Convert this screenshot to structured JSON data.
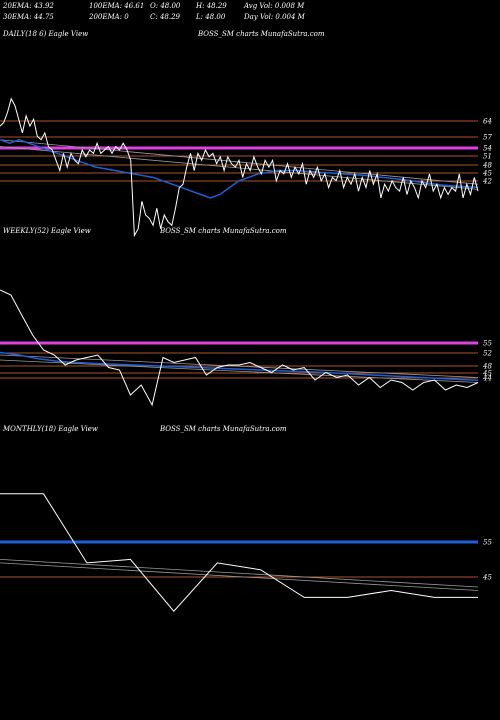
{
  "header": {
    "stats": [
      {
        "label": "20EMA: 43.92"
      },
      {
        "label": "100EMA: 46.61"
      },
      {
        "label": "O: 48.00"
      },
      {
        "label": "H: 48.29"
      },
      {
        "label": "Avg Vol: 0.008  M"
      },
      {
        "label": "30EMA: 44.75"
      },
      {
        "label": "200EMA: 0"
      },
      {
        "label": "C: 48.29"
      },
      {
        "label": "L: 48.00"
      },
      {
        "label": "Day Vol: 0.004  M"
      }
    ]
  },
  "colors": {
    "background": "#000000",
    "price_line": "#ffffff",
    "ema_short": "#1f5fd6",
    "magenta_level": "#e040e0",
    "orange_level": "#a8552a",
    "grey_trend": "#9a9a9a"
  },
  "chart_data": [
    {
      "type": "line",
      "panel": "daily",
      "title_left": "DAILY(18 6) Eagle  View",
      "title_right": "BOSS_SM charts MunafaSutra.com",
      "y_ticks": [
        "64",
        "57",
        "54",
        "51",
        "48",
        "45",
        "42"
      ],
      "levels": [
        {
          "value": 64,
          "kind": "orange"
        },
        {
          "value": 57,
          "kind": "orange"
        },
        {
          "value": 54,
          "kind": "magenta"
        },
        {
          "value": 51,
          "kind": "orange"
        },
        {
          "value": 48,
          "kind": "orange"
        },
        {
          "value": 45,
          "kind": "orange"
        },
        {
          "value": 42,
          "kind": "orange"
        }
      ],
      "price": [
        62,
        63,
        66,
        70,
        68,
        64,
        60,
        65,
        62,
        64,
        59,
        58,
        60,
        56,
        55,
        52,
        49,
        54,
        50,
        54,
        52,
        51,
        55,
        53,
        55,
        54,
        57,
        54,
        55,
        56,
        54,
        56,
        55,
        57,
        55,
        52,
        30,
        32,
        40,
        36,
        35,
        33,
        38,
        32,
        36,
        34,
        33,
        38,
        44,
        45,
        50,
        54,
        49,
        54,
        52,
        55,
        53,
        54,
        51,
        53,
        49,
        53,
        51,
        50,
        52,
        47,
        51,
        49,
        53,
        50,
        48,
        52,
        50,
        52,
        46,
        49,
        48,
        51,
        47,
        50,
        48,
        51,
        45,
        49,
        47,
        50,
        46,
        48,
        44,
        47,
        46,
        49,
        44,
        47,
        45,
        48,
        43,
        47,
        44,
        49,
        45,
        48,
        41,
        45,
        43,
        46,
        44,
        43,
        47,
        42,
        46,
        44,
        41,
        46,
        44,
        48,
        43,
        45,
        41,
        44,
        42,
        44,
        43,
        48,
        41,
        45,
        42,
        47,
        43
      ],
      "ema": [
        58,
        57,
        58,
        57,
        56,
        55,
        54,
        53,
        52,
        51,
        50,
        49.5,
        49,
        48.5,
        48,
        47.5,
        47,
        46,
        45,
        44,
        43,
        42,
        41,
        42,
        44,
        46,
        47,
        48,
        48.5,
        49,
        49,
        49,
        48.8,
        48.6,
        48.4,
        48.2,
        48,
        47.8,
        47.6,
        47.3,
        47,
        46.7,
        46.4,
        46,
        45.6,
        45.2,
        44.8,
        44.6,
        44.4,
        44.2,
        44.1
      ],
      "trend_a": [
        [
          0,
          58
        ],
        [
          1,
          45
        ]
      ],
      "trend_b": [
        [
          0,
          56
        ],
        [
          1,
          43.5
        ]
      ]
    },
    {
      "type": "line",
      "panel": "weekly",
      "title_left": "WEEKLY(52) Eagle  View",
      "title_right": "BOSS_SM charts MunafaSutra.com",
      "y_ticks": [
        "55",
        "52",
        "48",
        "45",
        "44"
      ],
      "levels": [
        {
          "value": 55,
          "kind": "magenta"
        },
        {
          "value": 52,
          "kind": "orange"
        },
        {
          "value": 48,
          "kind": "orange"
        },
        {
          "value": 45,
          "kind": "orange"
        },
        {
          "value": 44,
          "kind": "orange"
        }
      ],
      "price": [
        80,
        78,
        70,
        62,
        56,
        54,
        50,
        52,
        53,
        54,
        49,
        48,
        38,
        42,
        34,
        53,
        51,
        52,
        53,
        46,
        49,
        50,
        50,
        51,
        49,
        47,
        50,
        48,
        49,
        44,
        47,
        45,
        46,
        42,
        45,
        41,
        44,
        43,
        40,
        43,
        44,
        40,
        42,
        41,
        43
      ],
      "ema": [
        55,
        54,
        52.5,
        51.5,
        51,
        50.6,
        50.3,
        50,
        49.7,
        49.4,
        49.1,
        48.8,
        48.5,
        48.2,
        47.9,
        47.6,
        47.3,
        47,
        46.6,
        46.2,
        45.8,
        45.4,
        45,
        44.6,
        44.2,
        43.9
      ],
      "trend_a": [
        [
          0,
          54
        ],
        [
          1,
          45
        ]
      ],
      "trend_b": [
        [
          0,
          52
        ],
        [
          1,
          43
        ]
      ]
    },
    {
      "type": "line",
      "panel": "monthly",
      "title_left": "MONTHLY(18) Eagle  View",
      "title_right": "BOSS_SM charts MunafaSutra.com",
      "y_ticks": [
        "55",
        "45"
      ],
      "levels": [
        {
          "value": 55,
          "kind": "blue"
        },
        {
          "value": 45,
          "kind": "orange"
        }
      ],
      "price": [
        72,
        72,
        52,
        53,
        38,
        52,
        50,
        42,
        42,
        44,
        42,
        42
      ],
      "trend_a": [
        [
          0,
          53
        ],
        [
          1,
          45
        ]
      ],
      "trend_b": [
        [
          0,
          52
        ],
        [
          1,
          44
        ]
      ]
    }
  ]
}
